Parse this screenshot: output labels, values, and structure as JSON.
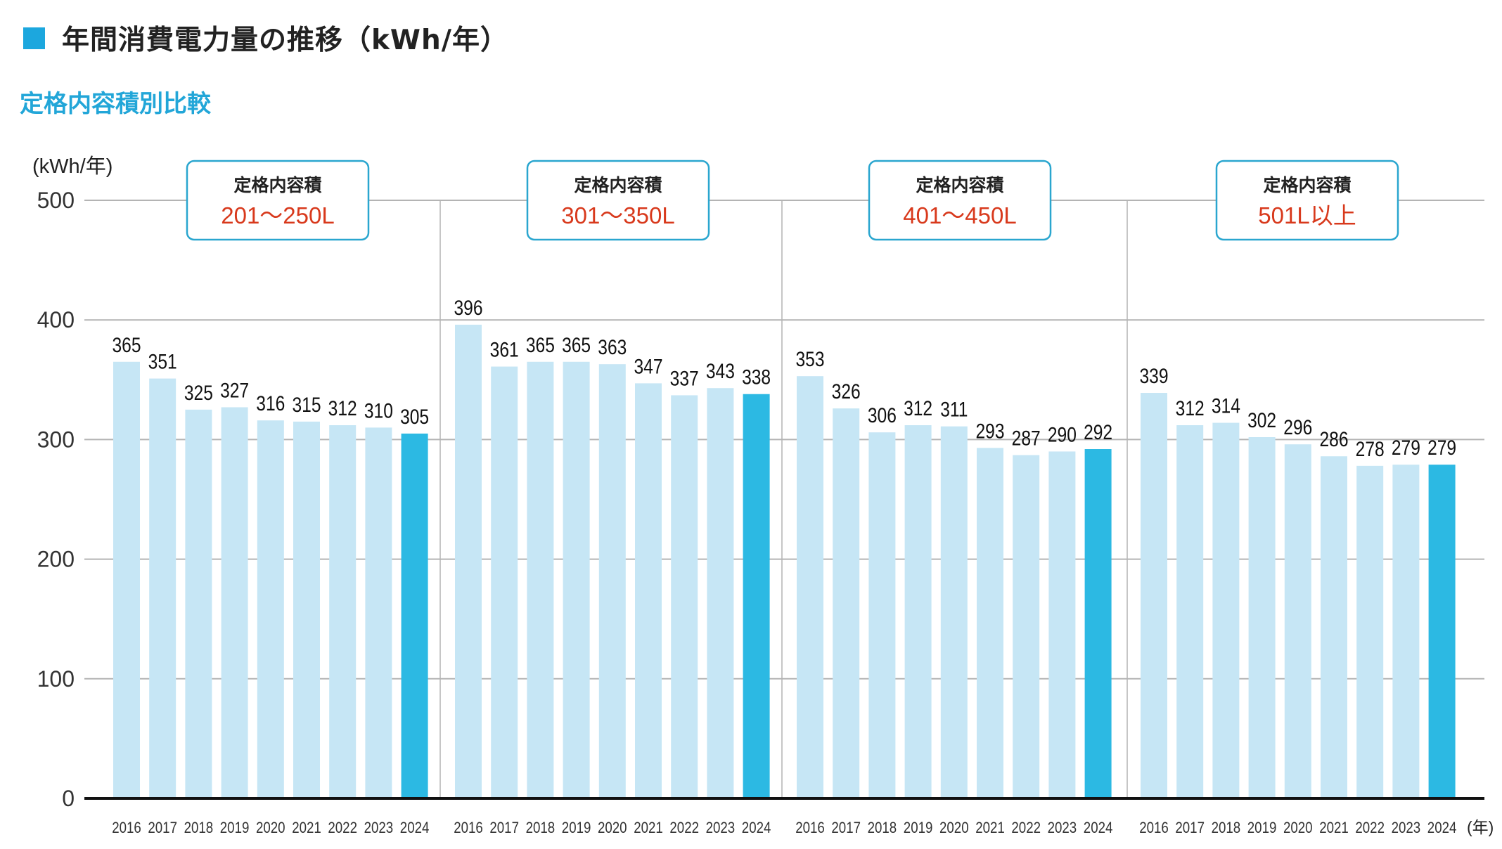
{
  "header": {
    "title": "年間消費電力量の推移（kWh/年）",
    "subtitle": "定格内容積別比較"
  },
  "colors": {
    "title_square": "#1ca7de",
    "subtitle": "#22a6d8",
    "bar": "#c6e6f5",
    "bar_highlight": "#2cb9e3",
    "box_border": "#2aa6cf",
    "range_text": "#d8391c",
    "grid": "#b4b4b4",
    "axis": "#111111"
  },
  "chart_data": {
    "type": "bar",
    "ylabel": "(kWh/年)",
    "xlabel": "(年)",
    "ylim": [
      0,
      500
    ],
    "yticks": [
      0,
      100,
      200,
      300,
      400,
      500
    ],
    "grid": true,
    "highlight_category": "2024",
    "categories": [
      "2016",
      "2017",
      "2018",
      "2019",
      "2020",
      "2021",
      "2022",
      "2023",
      "2024"
    ],
    "groups": [
      {
        "box_label": "定格内容積",
        "range": "201〜250L",
        "values": [
          365,
          351,
          325,
          327,
          316,
          315,
          312,
          310,
          305
        ]
      },
      {
        "box_label": "定格内容積",
        "range": "301〜350L",
        "values": [
          396,
          361,
          365,
          365,
          363,
          347,
          337,
          343,
          338
        ]
      },
      {
        "box_label": "定格内容積",
        "range": "401〜450L",
        "values": [
          353,
          326,
          306,
          312,
          311,
          293,
          287,
          290,
          292
        ]
      },
      {
        "box_label": "定格内容積",
        "range": "501L以上",
        "values": [
          339,
          312,
          314,
          302,
          296,
          286,
          278,
          279,
          279
        ]
      }
    ]
  }
}
